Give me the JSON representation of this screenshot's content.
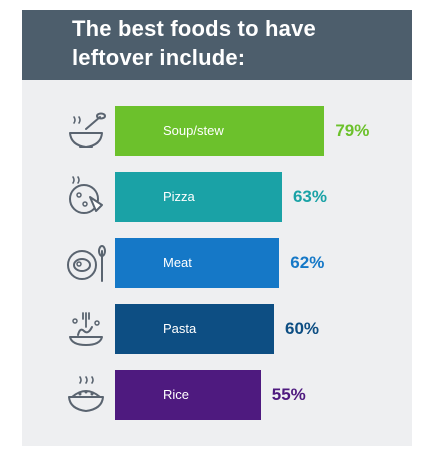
{
  "title_line1": "The best foods to have",
  "title_line2": "leftover include:",
  "colors": {
    "header_bg": "#4d5e6c",
    "panel_bg": "#eeeff1",
    "icon_stroke": "#5a6470"
  },
  "chart_data": {
    "type": "bar",
    "orientation": "horizontal",
    "title": "The best foods to have leftover include:",
    "categories": [
      "Soup/stew",
      "Pizza",
      "Meat",
      "Pasta",
      "Rice"
    ],
    "values": [
      79,
      63,
      62,
      60,
      55
    ],
    "value_labels": [
      "79%",
      "63%",
      "62%",
      "60%",
      "55%"
    ],
    "unit": "%",
    "bar_colors": [
      "#6cc12c",
      "#1aa2a6",
      "#1578c7",
      "#0d4e83",
      "#4e1a7f"
    ],
    "label_colors": [
      "#6cc12c",
      "#1aa2a6",
      "#1578c7",
      "#0d4e83",
      "#4e1a7f"
    ],
    "icons": [
      "soup-bowl-icon",
      "pizza-icon",
      "meat-plate-icon",
      "pasta-plate-icon",
      "rice-bowl-icon"
    ],
    "xlim": [
      0,
      100
    ],
    "grid": false,
    "legend": "none"
  }
}
